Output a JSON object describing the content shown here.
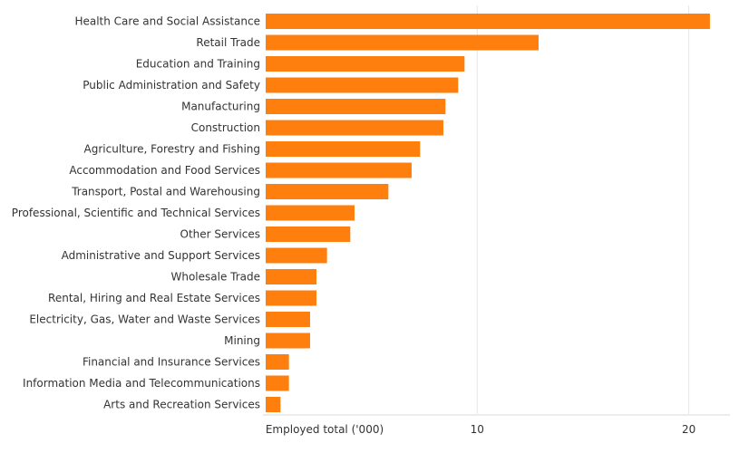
{
  "chart_data": {
    "type": "bar",
    "orientation": "horizontal",
    "title": "",
    "xlabel": "Employed total ('000)",
    "ylabel": "",
    "xlim": [
      0,
      22
    ],
    "x_ticks": [
      10,
      20
    ],
    "grid": true,
    "bar_color": "#ff7f0e",
    "gridline_color": "#e6e6e6",
    "categories": [
      "Health Care and Social Assistance",
      "Retail Trade",
      "Education and Training",
      "Public Administration and Safety",
      "Manufacturing",
      "Construction",
      "Agriculture, Forestry and Fishing",
      "Accommodation and Food Services",
      "Transport, Postal and Warehousing",
      "Professional, Scientific and Technical Services",
      "Other Services",
      "Administrative and Support Services",
      "Wholesale Trade",
      "Rental, Hiring and Real Estate Services",
      "Electricity, Gas, Water and Waste Services",
      "Mining",
      "Financial and Insurance Services",
      "Information Media and Telecommunications",
      "Arts and Recreation Services"
    ],
    "values": [
      21.0,
      12.9,
      9.4,
      9.1,
      8.5,
      8.4,
      7.3,
      6.9,
      5.8,
      4.2,
      4.0,
      2.9,
      2.4,
      2.4,
      2.1,
      2.1,
      1.1,
      1.1,
      0.7
    ]
  }
}
